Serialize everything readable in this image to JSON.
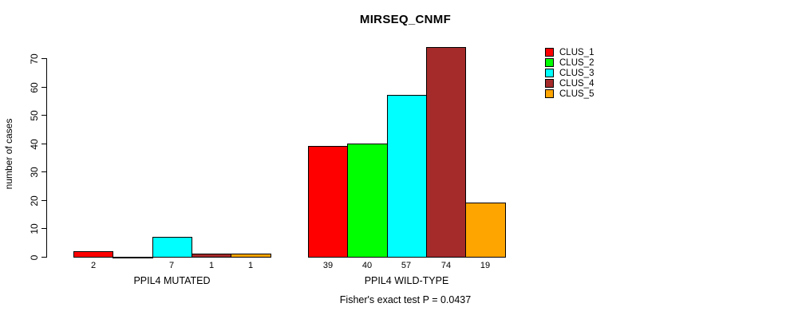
{
  "chart_data": {
    "type": "bar",
    "title": "MIRSEQ_CNMF",
    "ylabel": "number of cases",
    "xlabel": "",
    "ylim": [
      0,
      77
    ],
    "yticks": [
      0,
      10,
      20,
      30,
      40,
      50,
      60,
      70
    ],
    "grid": false,
    "legend_position": "top-right",
    "categories": [
      "PPIL4 MUTATED",
      "PPIL4 WILD-TYPE"
    ],
    "series": [
      {
        "name": "CLUS_1",
        "color": "#FF0000",
        "values": [
          2,
          39
        ]
      },
      {
        "name": "CLUS_2",
        "color": "#00FF00",
        "values": [
          0,
          40
        ]
      },
      {
        "name": "CLUS_3",
        "color": "#00FFFF",
        "values": [
          7,
          57
        ]
      },
      {
        "name": "CLUS_4",
        "color": "#A52A2A",
        "values": [
          1,
          74
        ]
      },
      {
        "name": "CLUS_5",
        "color": "#FFA500",
        "values": [
          1,
          19
        ]
      }
    ],
    "bar_value_labels_shown": true,
    "zero_value_labels_hidden": true,
    "annotation": "Fisher's exact test P = 0.0437"
  }
}
